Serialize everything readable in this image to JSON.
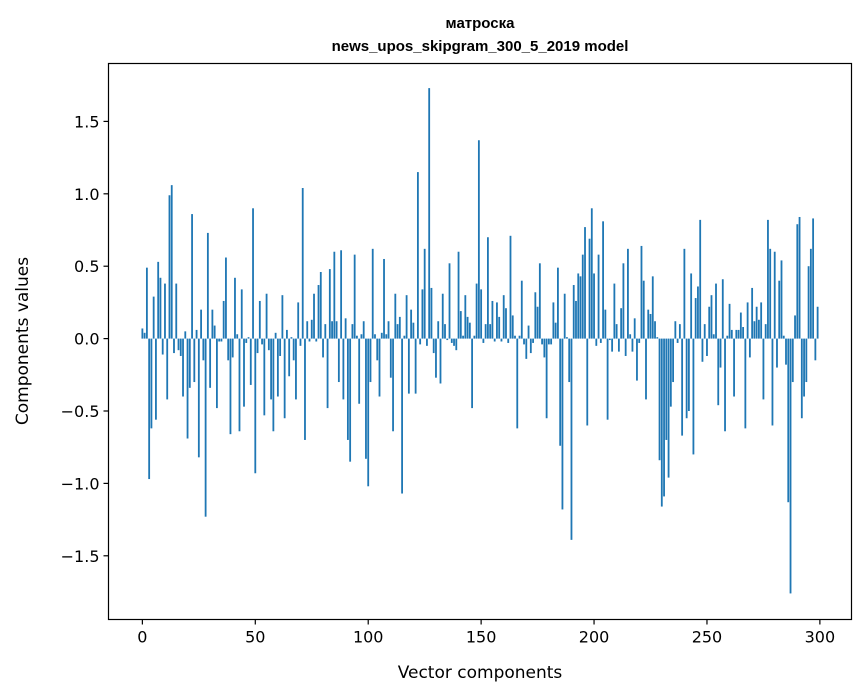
{
  "chart_data": {
    "type": "bar",
    "title": "матроска",
    "subtitle": "news_upos_skipgram_300_5_2019 model",
    "xlabel": "Vector components",
    "ylabel": "Components values",
    "xlim": [
      -15,
      314
    ],
    "ylim": [
      -1.94,
      1.9
    ],
    "x_ticks": [
      0,
      50,
      100,
      150,
      200,
      250,
      300
    ],
    "x_tick_labels": [
      "0",
      "50",
      "100",
      "150",
      "200",
      "250",
      "300"
    ],
    "y_ticks": [
      -1.5,
      -1.0,
      -0.5,
      0.0,
      0.5,
      1.0,
      1.5
    ],
    "y_tick_labels": [
      "−1.5",
      "−1.0",
      "−0.5",
      "0.0",
      "0.5",
      "1.0",
      "1.5"
    ],
    "bar_color": "#1f77b4",
    "grid": false,
    "values": [
      0.07,
      0.04,
      0.49,
      -0.97,
      -0.62,
      0.29,
      -0.56,
      0.53,
      0.42,
      -0.11,
      0.38,
      -0.42,
      0.99,
      1.06,
      -0.1,
      0.38,
      -0.08,
      -0.12,
      -0.4,
      0.05,
      -0.69,
      -0.34,
      0.86,
      -0.3,
      0.06,
      -0.82,
      0.2,
      -0.15,
      -1.23,
      0.73,
      -0.34,
      0.2,
      0.09,
      -0.48,
      -0.02,
      -0.02,
      0.26,
      0.56,
      -0.15,
      -0.66,
      -0.13,
      0.42,
      0.03,
      -0.64,
      0.34,
      -0.47,
      -0.03,
      0.01,
      -0.32,
      0.9,
      -0.93,
      -0.1,
      0.26,
      -0.04,
      -0.53,
      0.31,
      -0.08,
      -0.42,
      -0.64,
      0.04,
      -0.4,
      -0.12,
      0.3,
      -0.55,
      0.06,
      -0.26,
      0.01,
      -0.15,
      -0.42,
      0.25,
      -0.05,
      1.04,
      -0.7,
      0.12,
      -0.02,
      0.13,
      0.31,
      -0.02,
      0.37,
      0.46,
      -0.13,
      0.1,
      -0.48,
      0.48,
      0.12,
      0.6,
      0.12,
      -0.3,
      0.61,
      -0.42,
      0.14,
      -0.7,
      -0.85,
      0.1,
      0.58,
      0.02,
      -0.45,
      0.03,
      0.12,
      -0.83,
      -1.02,
      -0.3,
      0.62,
      0.03,
      -0.15,
      -0.4,
      0.04,
      0.55,
      0.03,
      0.12,
      -0.27,
      -0.64,
      0.31,
      0.1,
      0.15,
      -1.07,
      0.02,
      0.3,
      -0.38,
      0.2,
      0.11,
      -0.38,
      1.15,
      -0.04,
      0.34,
      0.62,
      -0.05,
      1.73,
      0.35,
      -0.1,
      -0.27,
      0.12,
      -0.31,
      0.31,
      0.1,
      -0.01,
      0.52,
      -0.03,
      -0.05,
      -0.08,
      0.6,
      0.19,
      0.02,
      0.3,
      0.15,
      0.11,
      -0.48,
      0.02,
      0.38,
      1.37,
      0.34,
      -0.03,
      0.1,
      0.7,
      0.1,
      0.26,
      -0.02,
      0.25,
      0.15,
      -0.02,
      0.3,
      0.21,
      -0.03,
      0.71,
      0.16,
      0.02,
      -0.62,
      0.02,
      0.4,
      -0.04,
      -0.14,
      0.09,
      -0.1,
      -0.03,
      0.32,
      0.22,
      0.52,
      -0.04,
      -0.13,
      -0.55,
      -0.04,
      -0.04,
      0.25,
      0.11,
      0.49,
      -0.74,
      -1.18,
      0.31,
      0.01,
      -0.3,
      -1.39,
      0.37,
      0.26,
      0.45,
      0.43,
      0.58,
      0.77,
      -0.6,
      0.69,
      0.9,
      0.45,
      -0.05,
      0.58,
      -0.03,
      0.81,
      0.2,
      -0.56,
      -0.01,
      -0.09,
      0.38,
      0.1,
      -0.09,
      0.21,
      0.52,
      -0.12,
      0.62,
      0.03,
      -0.09,
      0.14,
      -0.29,
      -0.03,
      0.64,
      0.4,
      -0.42,
      0.2,
      0.17,
      0.43,
      0.12,
      0.01,
      -0.84,
      -1.16,
      -1.09,
      -0.7,
      -0.96,
      -0.47,
      -0.3,
      0.12,
      -0.03,
      0.1,
      -0.67,
      0.62,
      -0.55,
      -0.5,
      0.45,
      -0.8,
      0.28,
      0.36,
      0.82,
      -0.16,
      0.1,
      -0.12,
      0.22,
      0.3,
      0.03,
      0.38,
      -0.46,
      -0.2,
      0.41,
      -0.64,
      0.02,
      0.24,
      0.06,
      -0.4,
      0.06,
      0.06,
      0.18,
      0.08,
      -0.62,
      0.25,
      -0.13,
      0.35,
      0.12,
      0.22,
      0.13,
      0.25,
      -0.42,
      0.1,
      0.82,
      0.62,
      -0.6,
      0.6,
      -0.2,
      0.4,
      0.54,
      0.02,
      -0.18,
      -1.13,
      -1.76,
      -0.3,
      0.16,
      0.79,
      0.84,
      -0.55,
      -0.4,
      -0.3,
      0.5,
      0.62,
      0.83,
      -0.15,
      0.22
    ]
  }
}
